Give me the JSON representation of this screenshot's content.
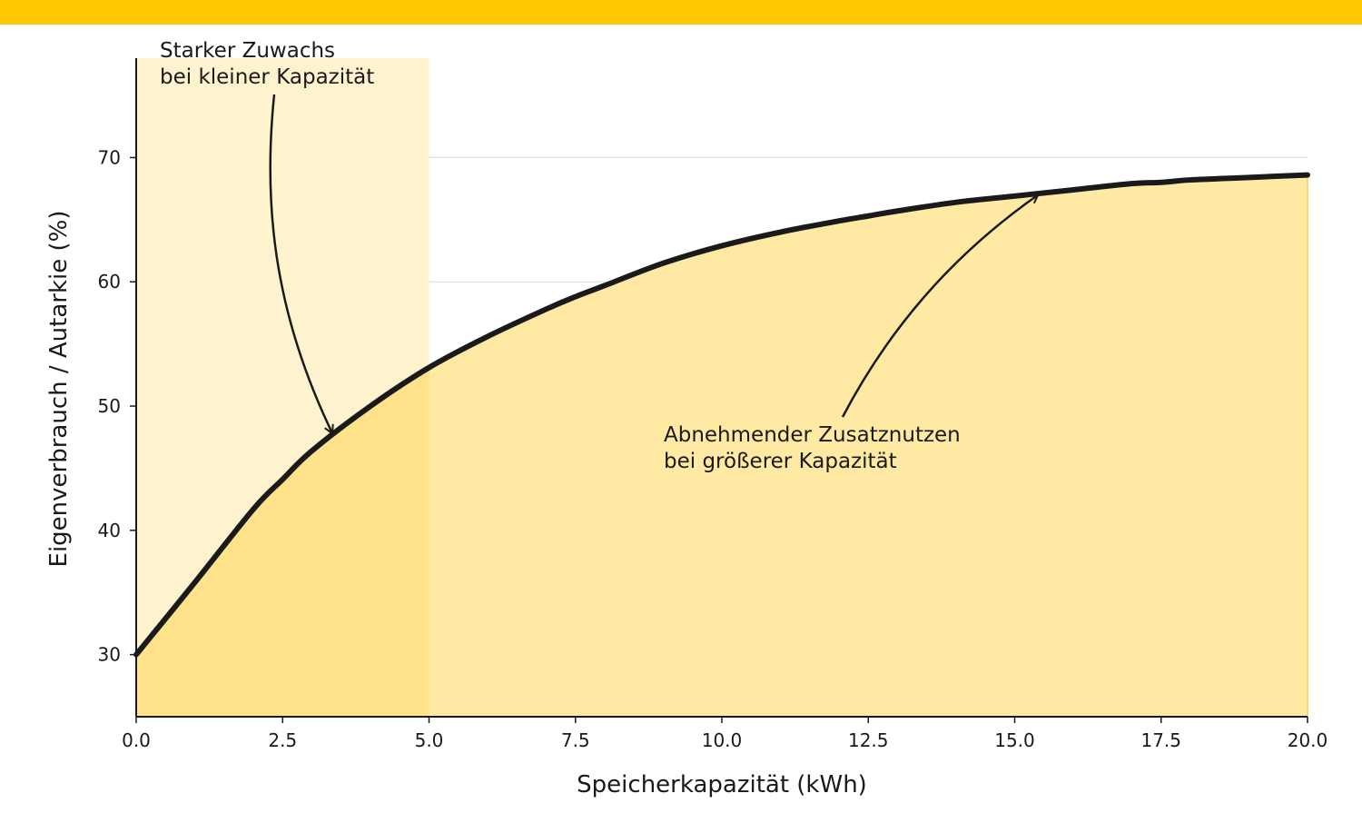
{
  "colors": {
    "top_bar": "#ffc800",
    "area_fill": "#ffe9a3",
    "highlight_band": "#fff3cf",
    "highlight_overlap": "#ffe28a",
    "curve": "#1a1a1a",
    "grid": "#d9d9d9"
  },
  "chart_data": {
    "type": "area",
    "xlabel": "Speicherkapazität (kWh)",
    "ylabel": "Eigenverbrauch / Autarkie (%)",
    "xlim": [
      0,
      20
    ],
    "ylim": [
      25,
      78
    ],
    "x_ticks": [
      "0.0",
      "2.5",
      "5.0",
      "7.5",
      "10.0",
      "12.5",
      "15.0",
      "17.5",
      "20.0"
    ],
    "y_ticks": [
      "30",
      "40",
      "50",
      "60",
      "70"
    ],
    "grid": "horizontal",
    "highlight_range": [
      0,
      5
    ],
    "series": [
      {
        "x": [
          0,
          1,
          2,
          2.5,
          3,
          4,
          5,
          6,
          7,
          7.5,
          8,
          9,
          10,
          11,
          12,
          12.5,
          13,
          14,
          15,
          16,
          17,
          17.5,
          18,
          19,
          20
        ],
        "values": [
          30,
          35.8,
          41.7,
          44.1,
          46.4,
          50.0,
          53.1,
          55.6,
          57.8,
          58.8,
          59.7,
          61.5,
          62.9,
          64.0,
          64.9,
          65.3,
          65.7,
          66.4,
          66.9,
          67.4,
          67.9,
          68.0,
          68.2,
          68.4,
          68.6
        ]
      }
    ],
    "annotations": [
      {
        "text_lines": [
          "Starker Zuwachs",
          "bei kleiner Kapazität"
        ],
        "target": [
          3.35,
          47.8
        ]
      },
      {
        "text_lines": [
          "Abnehmender Zusatznutzen",
          "bei größerer Kapazität"
        ],
        "target": [
          15.4,
          67.0
        ]
      }
    ]
  }
}
